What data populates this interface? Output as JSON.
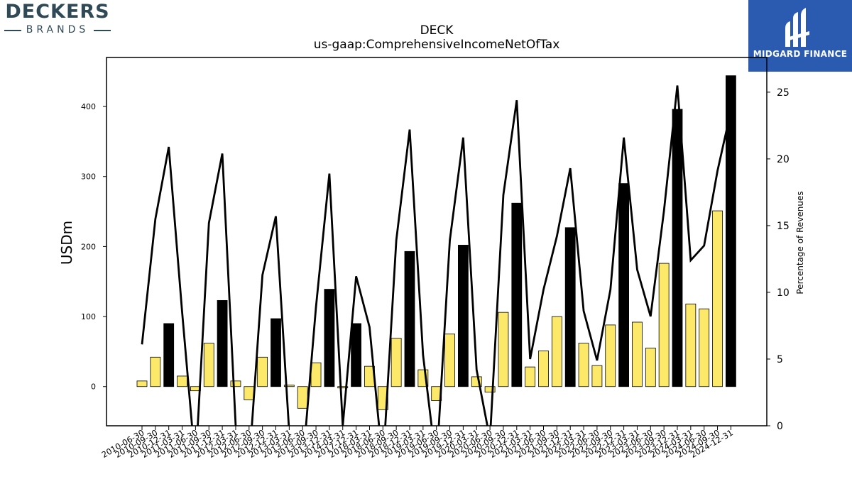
{
  "brand": {
    "name": "DECKERS",
    "sub": "BRANDS"
  },
  "badge": {
    "name": "MIDGARD FINANCE"
  },
  "colors": {
    "bar_q4": "#000000",
    "bar_other": "#fce96a",
    "line": "#000000"
  },
  "chart_data": {
    "type": "bar",
    "title": "DECK",
    "subtitle": "us-gaap:ComprehensiveIncomeNetOfTax",
    "ylabel": "USDm",
    "y2label": "Percentage of Revenues",
    "ylim": [
      -56,
      470
    ],
    "y2lim": [
      0,
      27.6
    ],
    "yticks": [
      0,
      100,
      200,
      300,
      400
    ],
    "y2ticks": [
      0,
      5,
      10,
      15,
      20,
      25
    ],
    "categories": [
      "2010-06-30",
      "2010-09-30",
      "2010-12-31",
      "2011-03-31",
      "2011-06-30",
      "2011-09-30",
      "2011-12-31",
      "2012-03-31",
      "2012-06-30",
      "2012-09-30",
      "2012-12-31",
      "2013-03-31",
      "2013-06-30",
      "2013-09-30",
      "2013-12-31",
      "2014-03-31",
      "2017-12-31",
      "2018-03-31",
      "2018-06-30",
      "2018-09-30",
      "2018-12-31",
      "2019-03-31",
      "2019-06-30",
      "2019-09-30",
      "2019-12-31",
      "2020-03-31",
      "2020-06-30",
      "2020-09-30",
      "2020-12-31",
      "2021-03-31",
      "2021-06-30",
      "2021-09-30",
      "2021-12-31",
      "2022-03-31",
      "2022-06-30",
      "2022-09-30",
      "2022-12-31",
      "2023-03-31",
      "2023-06-30",
      "2023-09-30",
      "2023-12-31",
      "2024-03-31",
      "2024-06-30",
      "2024-09-30",
      "2024-12-31"
    ],
    "series": [
      {
        "type": "bar",
        "values": [
          8,
          42,
          90,
          15,
          -6,
          62,
          123,
          8,
          -19,
          42,
          97,
          2,
          -31,
          34,
          139,
          -2,
          90,
          29,
          -33,
          69,
          193,
          24,
          -20,
          75,
          202,
          14,
          -8,
          106,
          262,
          28,
          51,
          100,
          227,
          62,
          30,
          88,
          290,
          92,
          55,
          176,
          396,
          118,
          111,
          251,
          444
        ]
      },
      {
        "type": "line",
        "axis": "right",
        "values": [
          6.1,
          15.5,
          20.9,
          8.5,
          -3.0,
          15.2,
          20.4,
          0.0,
          -3.0,
          11.3,
          15.7,
          -0.5,
          -3.0,
          8.9,
          18.9,
          0.0,
          11.2,
          7.4,
          -3.0,
          13.9,
          22.2,
          5.3,
          -3.0,
          13.9,
          21.6,
          4.2,
          -1.0,
          17.3,
          24.4,
          5.0,
          10.2,
          14.2,
          19.3,
          8.6,
          4.9,
          10.2,
          21.6,
          11.7,
          8.2,
          16.1,
          25.5,
          12.4,
          13.5,
          19.1,
          23.6
        ]
      }
    ]
  }
}
